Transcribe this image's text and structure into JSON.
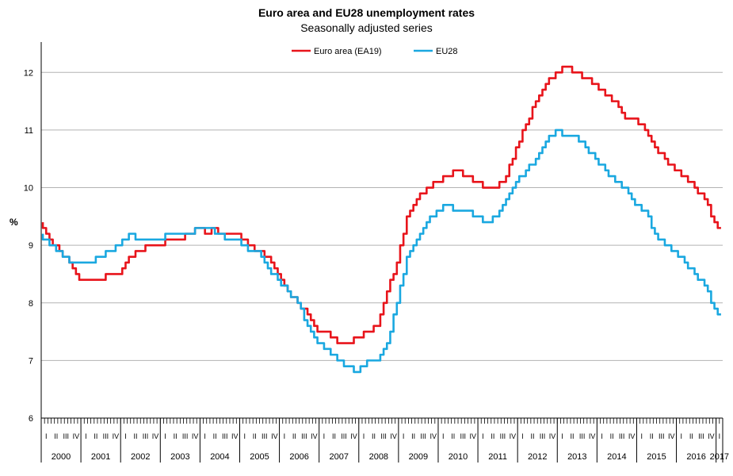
{
  "chart_data": {
    "type": "line",
    "title": "Euro area and EU28 unemployment rates",
    "subtitle": "Seasonally adjusted series",
    "ylabel": "%",
    "ylim": [
      6,
      12.5
    ],
    "yticks": [
      6,
      7,
      8,
      9,
      10,
      11,
      12
    ],
    "grid": true,
    "legend": "top-center",
    "x_start": "2000-01",
    "x_end": "2017-02",
    "frequency": "monthly",
    "years": [
      "2000",
      "2001",
      "2002",
      "2003",
      "2004",
      "2005",
      "2006",
      "2007",
      "2008",
      "2009",
      "2010",
      "2011",
      "2012",
      "2013",
      "2014",
      "2015",
      "2016",
      "2017"
    ],
    "quarter_labels": [
      "I",
      "II",
      "III",
      "IV"
    ],
    "series": [
      {
        "name": "Euro area (EA19)",
        "color": "#e8141b",
        "points": [
          [
            "2000-01",
            9.4
          ],
          [
            "2000-04",
            9.1
          ],
          [
            "2000-07",
            8.9
          ],
          [
            "2000-10",
            8.7
          ],
          [
            "2001-01",
            8.4
          ],
          [
            "2001-04",
            8.4
          ],
          [
            "2001-07",
            8.4
          ],
          [
            "2001-10",
            8.5
          ],
          [
            "2002-01",
            8.5
          ],
          [
            "2002-04",
            8.8
          ],
          [
            "2002-07",
            8.9
          ],
          [
            "2002-10",
            9.0
          ],
          [
            "2003-01",
            9.0
          ],
          [
            "2003-04",
            9.1
          ],
          [
            "2003-07",
            9.1
          ],
          [
            "2003-10",
            9.2
          ],
          [
            "2004-01",
            9.3
          ],
          [
            "2004-04",
            9.2
          ],
          [
            "2004-05",
            9.3
          ],
          [
            "2004-07",
            9.2
          ],
          [
            "2004-10",
            9.2
          ],
          [
            "2005-01",
            9.2
          ],
          [
            "2005-04",
            9.0
          ],
          [
            "2005-07",
            8.9
          ],
          [
            "2005-10",
            8.8
          ],
          [
            "2006-01",
            8.5
          ],
          [
            "2006-04",
            8.2
          ],
          [
            "2006-07",
            8.0
          ],
          [
            "2006-10",
            7.8
          ],
          [
            "2007-01",
            7.5
          ],
          [
            "2007-04",
            7.5
          ],
          [
            "2007-07",
            7.3
          ],
          [
            "2007-10",
            7.3
          ],
          [
            "2008-01",
            7.4
          ],
          [
            "2008-04",
            7.5
          ],
          [
            "2008-07",
            7.6
          ],
          [
            "2008-10",
            8.2
          ],
          [
            "2009-01",
            8.7
          ],
          [
            "2009-04",
            9.5
          ],
          [
            "2009-07",
            9.8
          ],
          [
            "2009-10",
            10.0
          ],
          [
            "2010-01",
            10.1
          ],
          [
            "2010-04",
            10.2
          ],
          [
            "2010-07",
            10.3
          ],
          [
            "2010-10",
            10.2
          ],
          [
            "2011-01",
            10.1
          ],
          [
            "2011-04",
            10.0
          ],
          [
            "2011-07",
            10.0
          ],
          [
            "2011-10",
            10.2
          ],
          [
            "2012-01",
            10.7
          ],
          [
            "2012-04",
            11.1
          ],
          [
            "2012-07",
            11.5
          ],
          [
            "2012-10",
            11.8
          ],
          [
            "2013-01",
            12.0
          ],
          [
            "2013-04",
            12.1
          ],
          [
            "2013-07",
            12.0
          ],
          [
            "2013-10",
            11.9
          ],
          [
            "2014-01",
            11.8
          ],
          [
            "2014-04",
            11.6
          ],
          [
            "2014-07",
            11.5
          ],
          [
            "2014-10",
            11.2
          ],
          [
            "2015-01",
            11.2
          ],
          [
            "2015-04",
            11.0
          ],
          [
            "2015-07",
            10.7
          ],
          [
            "2015-10",
            10.5
          ],
          [
            "2016-01",
            10.3
          ],
          [
            "2016-04",
            10.2
          ],
          [
            "2016-07",
            10.0
          ],
          [
            "2016-10",
            9.8
          ],
          [
            "2017-01",
            9.4
          ],
          [
            "2017-02",
            9.3
          ]
        ]
      },
      {
        "name": "EU28",
        "color": "#1aa8e0",
        "points": [
          [
            "2000-01",
            9.2
          ],
          [
            "2000-04",
            9.0
          ],
          [
            "2000-07",
            8.9
          ],
          [
            "2000-10",
            8.7
          ],
          [
            "2001-01",
            8.7
          ],
          [
            "2001-04",
            8.7
          ],
          [
            "2001-07",
            8.8
          ],
          [
            "2001-10",
            8.9
          ],
          [
            "2002-01",
            9.0
          ],
          [
            "2002-04",
            9.2
          ],
          [
            "2002-07",
            9.1
          ],
          [
            "2002-10",
            9.1
          ],
          [
            "2003-01",
            9.1
          ],
          [
            "2003-04",
            9.2
          ],
          [
            "2003-07",
            9.2
          ],
          [
            "2003-10",
            9.2
          ],
          [
            "2004-01",
            9.3
          ],
          [
            "2004-04",
            9.3
          ],
          [
            "2004-07",
            9.2
          ],
          [
            "2004-10",
            9.1
          ],
          [
            "2005-01",
            9.1
          ],
          [
            "2005-04",
            8.9
          ],
          [
            "2005-07",
            8.9
          ],
          [
            "2005-10",
            8.6
          ],
          [
            "2006-01",
            8.4
          ],
          [
            "2006-04",
            8.2
          ],
          [
            "2006-07",
            8.0
          ],
          [
            "2006-10",
            7.6
          ],
          [
            "2007-01",
            7.3
          ],
          [
            "2007-04",
            7.2
          ],
          [
            "2007-07",
            7.0
          ],
          [
            "2007-10",
            6.9
          ],
          [
            "2008-01",
            6.8
          ],
          [
            "2008-04",
            7.0
          ],
          [
            "2008-07",
            7.0
          ],
          [
            "2008-10",
            7.3
          ],
          [
            "2009-01",
            8.0
          ],
          [
            "2009-04",
            8.8
          ],
          [
            "2009-07",
            9.1
          ],
          [
            "2009-10",
            9.4
          ],
          [
            "2010-01",
            9.6
          ],
          [
            "2010-04",
            9.7
          ],
          [
            "2010-07",
            9.6
          ],
          [
            "2010-10",
            9.6
          ],
          [
            "2011-01",
            9.5
          ],
          [
            "2011-04",
            9.4
          ],
          [
            "2011-07",
            9.5
          ],
          [
            "2011-10",
            9.8
          ],
          [
            "2012-01",
            10.1
          ],
          [
            "2012-04",
            10.3
          ],
          [
            "2012-07",
            10.5
          ],
          [
            "2012-10",
            10.8
          ],
          [
            "2013-01",
            11.0
          ],
          [
            "2013-04",
            10.9
          ],
          [
            "2013-07",
            10.9
          ],
          [
            "2013-10",
            10.7
          ],
          [
            "2014-01",
            10.5
          ],
          [
            "2014-04",
            10.3
          ],
          [
            "2014-07",
            10.1
          ],
          [
            "2014-10",
            10.0
          ],
          [
            "2015-01",
            9.7
          ],
          [
            "2015-04",
            9.6
          ],
          [
            "2015-07",
            9.2
          ],
          [
            "2015-10",
            9.0
          ],
          [
            "2016-01",
            8.9
          ],
          [
            "2016-04",
            8.7
          ],
          [
            "2016-07",
            8.5
          ],
          [
            "2016-10",
            8.3
          ],
          [
            "2017-01",
            7.9
          ],
          [
            "2017-02",
            7.8
          ]
        ]
      }
    ]
  }
}
